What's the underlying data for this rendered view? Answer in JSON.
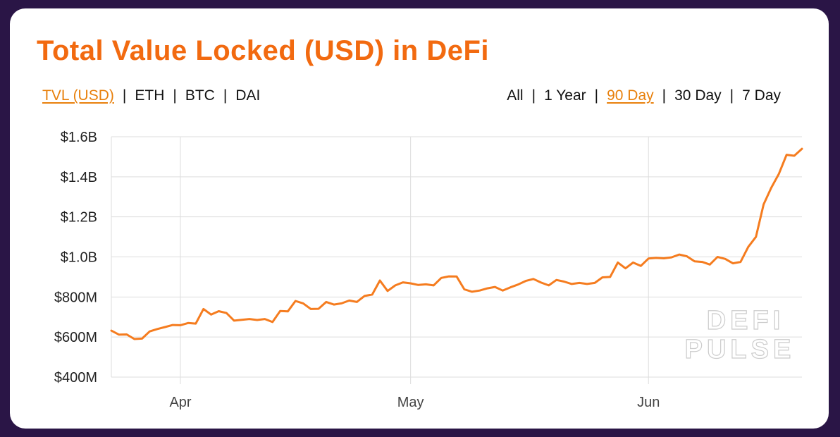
{
  "title": "Total Value Locked (USD) in DeFi",
  "metric_tabs": [
    {
      "label": "TVL (USD)",
      "active": true
    },
    {
      "label": "ETH",
      "active": false
    },
    {
      "label": "BTC",
      "active": false
    },
    {
      "label": "DAI",
      "active": false
    }
  ],
  "range_tabs": [
    {
      "label": "All",
      "active": false
    },
    {
      "label": "1 Year",
      "active": false
    },
    {
      "label": "90 Day",
      "active": true
    },
    {
      "label": "30 Day",
      "active": false
    },
    {
      "label": "7 Day",
      "active": false
    }
  ],
  "separator": "|",
  "watermark": [
    "DEFI",
    "PULSE"
  ],
  "colors": {
    "accent": "#f26a10",
    "line": "#f57c1f",
    "active_tab": "#e8800c",
    "background": "#2a1546"
  },
  "chart_data": {
    "type": "line",
    "title": "",
    "xlabel": "",
    "ylabel": "",
    "ylim": [
      400,
      1600
    ],
    "y_ticks": [
      400,
      600,
      800,
      1000,
      1200,
      1400,
      1600
    ],
    "y_tick_labels": [
      "$400M",
      "$600M",
      "$800M",
      "$1.0B",
      "$1.2B",
      "$1.4B",
      "$1.6B"
    ],
    "x_range": [
      "2020-03-23",
      "2020-06-21"
    ],
    "x_ticks": [
      {
        "date": "2020-04-01",
        "label": "Apr"
      },
      {
        "date": "2020-05-01",
        "label": "May"
      },
      {
        "date": "2020-06-01",
        "label": "Jun"
      }
    ],
    "grid": true,
    "series": [
      {
        "x": [
          "2020-03-23",
          "2020-03-24",
          "2020-03-25",
          "2020-03-26",
          "2020-03-27",
          "2020-03-28",
          "2020-03-29",
          "2020-03-30",
          "2020-03-31",
          "2020-04-01",
          "2020-04-02",
          "2020-04-03",
          "2020-04-04",
          "2020-04-05",
          "2020-04-06",
          "2020-04-07",
          "2020-04-08",
          "2020-04-09",
          "2020-04-10",
          "2020-04-11",
          "2020-04-12",
          "2020-04-13",
          "2020-04-14",
          "2020-04-15",
          "2020-04-16",
          "2020-04-17",
          "2020-04-18",
          "2020-04-19",
          "2020-04-20",
          "2020-04-21",
          "2020-04-22",
          "2020-04-23",
          "2020-04-24",
          "2020-04-25",
          "2020-04-26",
          "2020-04-27",
          "2020-04-28",
          "2020-04-29",
          "2020-04-30",
          "2020-05-01",
          "2020-05-02",
          "2020-05-03",
          "2020-05-04",
          "2020-05-05",
          "2020-05-06",
          "2020-05-07",
          "2020-05-08",
          "2020-05-09",
          "2020-05-10",
          "2020-05-11",
          "2020-05-12",
          "2020-05-13",
          "2020-05-14",
          "2020-05-15",
          "2020-05-16",
          "2020-05-17",
          "2020-05-18",
          "2020-05-19",
          "2020-05-20",
          "2020-05-21",
          "2020-05-22",
          "2020-05-23",
          "2020-05-24",
          "2020-05-25",
          "2020-05-26",
          "2020-05-27",
          "2020-05-28",
          "2020-05-29",
          "2020-05-30",
          "2020-05-31",
          "2020-06-01",
          "2020-06-02",
          "2020-06-03",
          "2020-06-04",
          "2020-06-05",
          "2020-06-06",
          "2020-06-07",
          "2020-06-08",
          "2020-06-09",
          "2020-06-10",
          "2020-06-11",
          "2020-06-12",
          "2020-06-13",
          "2020-06-14",
          "2020-06-15",
          "2020-06-16",
          "2020-06-17",
          "2020-06-18",
          "2020-06-19",
          "2020-06-20",
          "2020-06-21"
        ],
        "values": [
          632,
          612,
          613,
          590,
          592,
          628,
          640,
          650,
          660,
          659,
          670,
          667,
          740,
          712,
          729,
          720,
          682,
          686,
          690,
          685,
          690,
          675,
          730,
          728,
          780,
          768,
          740,
          741,
          775,
          762,
          768,
          782,
          775,
          805,
          812,
          882,
          830,
          858,
          873,
          868,
          860,
          863,
          858,
          895,
          903,
          902,
          838,
          826,
          832,
          843,
          850,
          832,
          848,
          862,
          880,
          890,
          872,
          858,
          885,
          877,
          865,
          870,
          865,
          870,
          898,
          900,
          972,
          943,
          972,
          955,
          992,
          995,
          993,
          998,
          1012,
          1003,
          978,
          975,
          962,
          1000,
          990,
          968,
          975,
          1050,
          1100,
          1262,
          1345,
          1415,
          1510,
          1505,
          1540
        ]
      }
    ]
  }
}
